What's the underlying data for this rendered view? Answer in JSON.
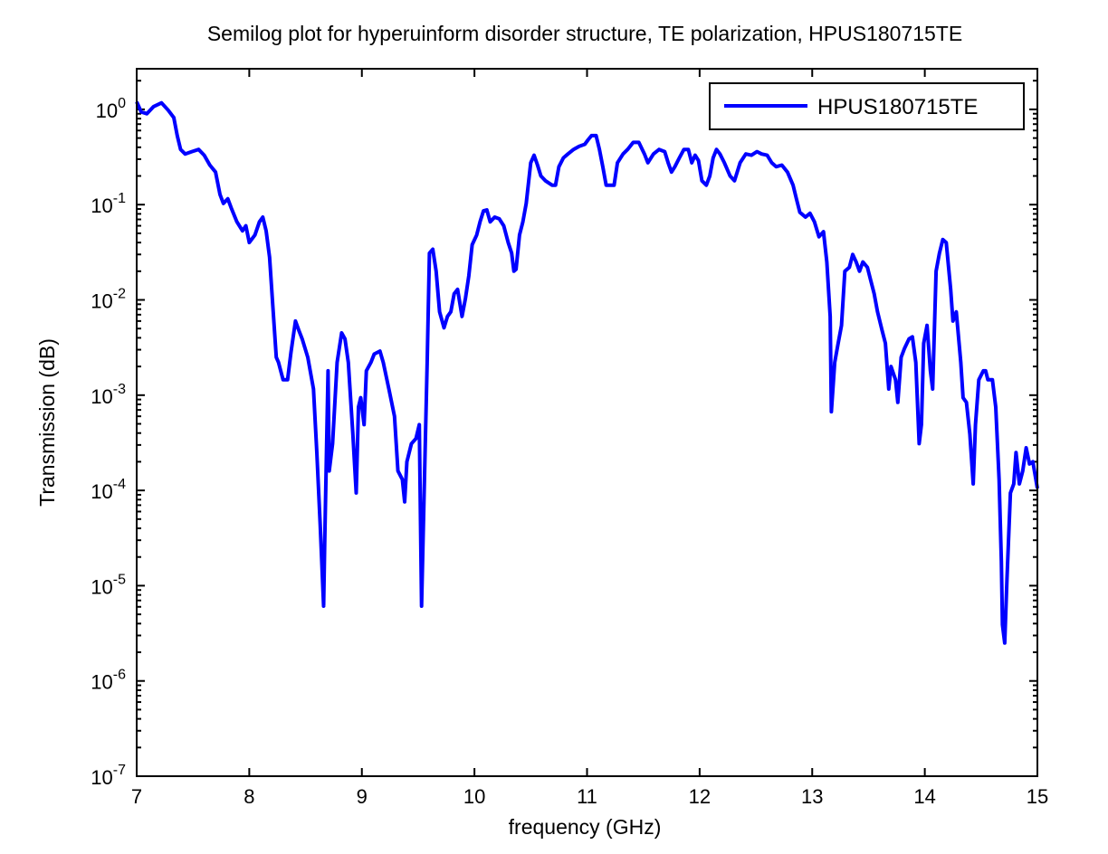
{
  "chart_data": {
    "type": "line",
    "title": "Semilog plot for hyperuinform disorder structure, TE polarization, HPUS180715TE",
    "xlabel": "frequency (GHz)",
    "ylabel": "Transmission (dB)",
    "xlim": [
      7,
      15
    ],
    "ylim": [
      1e-07,
      2.67
    ],
    "yscale": "log",
    "grid": false,
    "legend_placement": "top-right",
    "xticks": [
      "7",
      "8",
      "9",
      "10",
      "11",
      "12",
      "13",
      "14",
      "15"
    ],
    "yticks": [
      {
        "base": "10",
        "exp": "0"
      },
      {
        "base": "10",
        "exp": "-1"
      },
      {
        "base": "10",
        "exp": "-2"
      },
      {
        "base": "10",
        "exp": "-3"
      },
      {
        "base": "10",
        "exp": "-4"
      },
      {
        "base": "10",
        "exp": "-5"
      },
      {
        "base": "10",
        "exp": "-6"
      },
      {
        "base": "10",
        "exp": "-7"
      }
    ],
    "series": [
      {
        "name": "HPUS180715TE",
        "color": "#0000ff",
        "x": [
          7.0,
          7.04,
          7.09,
          7.15,
          7.22,
          7.28,
          7.33,
          7.36,
          7.39,
          7.43,
          7.49,
          7.55,
          7.6,
          7.65,
          7.7,
          7.74,
          7.77,
          7.81,
          7.84,
          7.89,
          7.94,
          7.97,
          8.0,
          8.05,
          8.09,
          8.12,
          8.15,
          8.18,
          8.21,
          8.24,
          8.26,
          8.3,
          8.34,
          8.37,
          8.41,
          8.44,
          8.47,
          8.52,
          8.57,
          8.6,
          8.63,
          8.66,
          8.67,
          8.7,
          8.71,
          8.74,
          8.78,
          8.82,
          8.85,
          8.88,
          8.92,
          8.95,
          8.97,
          8.99,
          9.02,
          9.04,
          9.08,
          9.11,
          9.16,
          9.19,
          9.24,
          9.29,
          9.32,
          9.36,
          9.38,
          9.4,
          9.44,
          9.48,
          9.51,
          9.53,
          9.55,
          9.58,
          9.6,
          9.63,
          9.66,
          9.69,
          9.73,
          9.76,
          9.79,
          9.82,
          9.85,
          9.89,
          9.92,
          9.95,
          9.98,
          10.02,
          10.05,
          10.08,
          10.11,
          10.14,
          10.18,
          10.22,
          10.26,
          10.3,
          10.33,
          10.35,
          10.37,
          10.4,
          10.43,
          10.46,
          10.5,
          10.53,
          10.56,
          10.59,
          10.63,
          10.69,
          10.72,
          10.75,
          10.79,
          10.83,
          10.88,
          10.93,
          10.98,
          11.01,
          11.04,
          11.08,
          11.11,
          11.14,
          11.17,
          11.24,
          11.27,
          11.32,
          11.36,
          11.41,
          11.46,
          11.51,
          11.54,
          11.59,
          11.64,
          11.69,
          11.72,
          11.75,
          11.78,
          11.82,
          11.86,
          11.9,
          11.93,
          11.96,
          11.99,
          12.02,
          12.06,
          12.09,
          12.12,
          12.15,
          12.18,
          12.22,
          12.27,
          12.31,
          12.36,
          12.41,
          12.46,
          12.51,
          12.55,
          12.6,
          12.64,
          12.68,
          12.73,
          12.78,
          12.83,
          12.86,
          12.89,
          12.94,
          12.98,
          13.02,
          13.06,
          13.1,
          13.13,
          13.16,
          13.17,
          13.2,
          13.23,
          13.26,
          13.29,
          13.33,
          13.36,
          13.39,
          13.42,
          13.45,
          13.49,
          13.52,
          13.55,
          13.58,
          13.62,
          13.65,
          13.68,
          13.7,
          13.74,
          13.76,
          13.79,
          13.82,
          13.86,
          13.89,
          13.92,
          13.95,
          13.97,
          13.99,
          14.02,
          14.05,
          14.07,
          14.1,
          14.13,
          14.16,
          14.19,
          14.23,
          14.25,
          14.28,
          14.32,
          14.34,
          14.37,
          14.4,
          14.43,
          14.45,
          14.48,
          14.52,
          14.54,
          14.56,
          14.6,
          14.63,
          14.66,
          14.68,
          14.69,
          14.71,
          14.73,
          14.76,
          14.79,
          14.81,
          14.84,
          14.87,
          14.9,
          14.93,
          14.96,
          15.0
        ],
        "y": [
          1.2,
          0.94,
          0.9,
          1.07,
          1.17,
          0.98,
          0.82,
          0.53,
          0.38,
          0.34,
          0.36,
          0.38,
          0.33,
          0.26,
          0.22,
          0.128,
          0.103,
          0.115,
          0.092,
          0.066,
          0.053,
          0.06,
          0.04,
          0.048,
          0.066,
          0.074,
          0.053,
          0.028,
          0.0083,
          0.0025,
          0.0022,
          0.00145,
          0.00145,
          0.0028,
          0.006,
          0.0048,
          0.0039,
          0.0025,
          0.00116,
          0.00025,
          4.4e-05,
          6.1e-06,
          2.8e-05,
          0.0018,
          0.00016,
          0.00031,
          0.0022,
          0.0045,
          0.0039,
          0.0022,
          0.00039,
          9.4e-05,
          0.00075,
          0.00094,
          0.00049,
          0.0018,
          0.0022,
          0.0027,
          0.0029,
          0.0022,
          0.00116,
          0.0006,
          0.00016,
          0.00013,
          7.6e-05,
          0.0002,
          0.00031,
          0.00035,
          0.00049,
          6.1e-06,
          6.8e-05,
          0.0022,
          0.031,
          0.034,
          0.02,
          0.0075,
          0.0051,
          0.0067,
          0.0075,
          0.0116,
          0.0129,
          0.0067,
          0.0104,
          0.0179,
          0.038,
          0.048,
          0.066,
          0.086,
          0.088,
          0.066,
          0.074,
          0.071,
          0.06,
          0.04,
          0.031,
          0.02,
          0.021,
          0.048,
          0.066,
          0.103,
          0.275,
          0.33,
          0.26,
          0.2,
          0.178,
          0.16,
          0.16,
          0.25,
          0.31,
          0.34,
          0.38,
          0.41,
          0.43,
          0.48,
          0.53,
          0.53,
          0.38,
          0.25,
          0.16,
          0.16,
          0.275,
          0.34,
          0.38,
          0.45,
          0.45,
          0.34,
          0.275,
          0.34,
          0.38,
          0.36,
          0.275,
          0.22,
          0.25,
          0.31,
          0.38,
          0.38,
          0.275,
          0.33,
          0.29,
          0.178,
          0.16,
          0.2,
          0.31,
          0.38,
          0.34,
          0.275,
          0.2,
          0.178,
          0.275,
          0.34,
          0.33,
          0.36,
          0.34,
          0.33,
          0.275,
          0.25,
          0.26,
          0.22,
          0.16,
          0.115,
          0.083,
          0.074,
          0.081,
          0.066,
          0.046,
          0.052,
          0.025,
          0.0067,
          0.00067,
          0.0022,
          0.0035,
          0.0054,
          0.02,
          0.022,
          0.03,
          0.025,
          0.02,
          0.025,
          0.022,
          0.016,
          0.0116,
          0.0075,
          0.0048,
          0.0035,
          0.00116,
          0.002,
          0.00145,
          0.00084,
          0.0025,
          0.0031,
          0.0039,
          0.0041,
          0.0022,
          0.00031,
          0.00049,
          0.0035,
          0.0054,
          0.0018,
          0.00116,
          0.02,
          0.031,
          0.043,
          0.04,
          0.0129,
          0.006,
          0.0075,
          0.0022,
          0.00094,
          0.00084,
          0.00039,
          0.000117,
          0.00049,
          0.00145,
          0.0018,
          0.0018,
          0.00145,
          0.00145,
          0.00075,
          0.00013,
          1.8e-05,
          3.9e-06,
          2.5e-06,
          1.18e-05,
          9.4e-05,
          0.000117,
          0.00025,
          0.000117,
          0.00016,
          0.00028,
          0.00019,
          0.0002,
          0.000105
        ]
      }
    ]
  }
}
